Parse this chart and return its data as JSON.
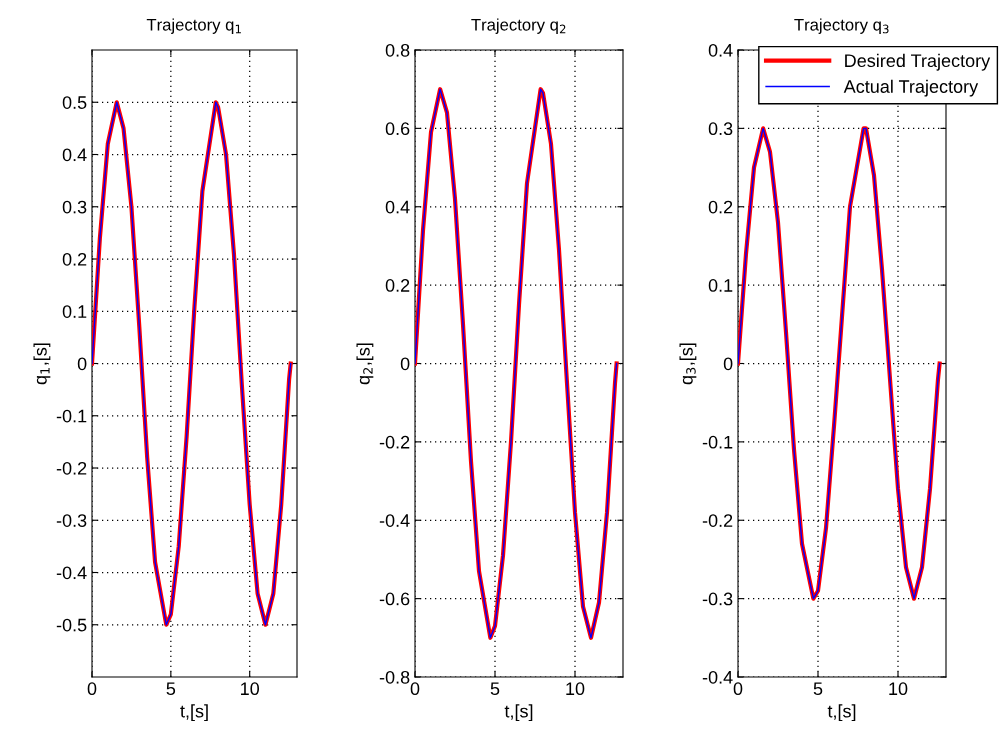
{
  "chart_data": [
    {
      "type": "line",
      "title": "Trajectory q$_{1}$",
      "xlabel": "t,[s]",
      "ylabel": "q$_{1}$,[s]",
      "x": [
        0,
        0.5,
        1,
        1.57,
        2,
        2.5,
        3,
        3.5,
        4,
        4.71,
        5,
        5.5,
        6,
        6.5,
        7,
        7.85,
        8,
        8.5,
        9,
        9.5,
        10,
        10.5,
        11,
        11.5,
        12,
        12.5,
        12.6
      ],
      "xlim": [
        0,
        13
      ],
      "xticks": [
        0,
        5,
        10
      ],
      "ylim": [
        -0.6,
        0.6
      ],
      "yticks": [
        -0.5,
        -0.4,
        -0.3,
        -0.2,
        -0.1,
        0,
        0.1,
        0.2,
        0.3,
        0.4,
        0.5
      ],
      "grid": true,
      "series": [
        {
          "color": "#ff0000",
          "values": [
            0,
            0.24,
            0.42,
            0.5,
            0.45,
            0.3,
            0.07,
            -0.18,
            -0.38,
            -0.5,
            -0.48,
            -0.35,
            -0.14,
            0.11,
            0.33,
            0.5,
            0.49,
            0.4,
            0.21,
            -0.04,
            -0.27,
            -0.44,
            -0.5,
            -0.44,
            -0.27,
            -0.03,
            0
          ]
        },
        {
          "color": "#0000ff",
          "values": [
            0,
            0.24,
            0.42,
            0.5,
            0.45,
            0.3,
            0.07,
            -0.18,
            -0.38,
            -0.5,
            -0.48,
            -0.35,
            -0.14,
            0.11,
            0.33,
            0.5,
            0.49,
            0.4,
            0.21,
            -0.04,
            -0.27,
            -0.44,
            -0.5,
            -0.44,
            -0.27,
            -0.03,
            0
          ]
        }
      ]
    },
    {
      "type": "line",
      "title": "Trajectory q$_{2}$",
      "xlabel": "t,[s]",
      "ylabel": "q$_{2}$,[s]",
      "x": [
        0,
        0.5,
        1,
        1.57,
        2,
        2.5,
        3,
        3.5,
        4,
        4.71,
        5,
        5.5,
        6,
        6.5,
        7,
        7.85,
        8,
        8.5,
        9,
        9.5,
        10,
        10.5,
        11,
        11.5,
        12,
        12.5,
        12.6
      ],
      "xlim": [
        0,
        13
      ],
      "xticks": [
        0,
        5,
        10
      ],
      "ylim": [
        -0.8,
        0.8
      ],
      "yticks": [
        -0.8,
        -0.6,
        -0.4,
        -0.2,
        0,
        0.2,
        0.4,
        0.6,
        0.8
      ],
      "grid": true,
      "series": [
        {
          "color": "#ff0000",
          "values": [
            0,
            0.34,
            0.59,
            0.7,
            0.64,
            0.42,
            0.1,
            -0.25,
            -0.53,
            -0.7,
            -0.67,
            -0.49,
            -0.2,
            0.15,
            0.46,
            0.7,
            0.69,
            0.56,
            0.29,
            -0.05,
            -0.38,
            -0.62,
            -0.7,
            -0.61,
            -0.38,
            -0.05,
            0
          ]
        },
        {
          "color": "#0000ff",
          "values": [
            0,
            0.34,
            0.59,
            0.7,
            0.64,
            0.42,
            0.1,
            -0.25,
            -0.53,
            -0.7,
            -0.67,
            -0.49,
            -0.2,
            0.15,
            0.46,
            0.7,
            0.69,
            0.56,
            0.29,
            -0.05,
            -0.38,
            -0.62,
            -0.7,
            -0.61,
            -0.38,
            -0.05,
            0
          ]
        }
      ]
    },
    {
      "type": "line",
      "title": "Trajectory q$_{3}$",
      "xlabel": "t,[s]",
      "ylabel": "q$_{3}$,[s]",
      "x": [
        0,
        0.5,
        1,
        1.57,
        2,
        2.5,
        3,
        3.5,
        4,
        4.71,
        5,
        5.5,
        6,
        6.5,
        7,
        7.85,
        8,
        8.5,
        9,
        9.5,
        10,
        10.5,
        11,
        11.5,
        12,
        12.5,
        12.6
      ],
      "xlim": [
        0,
        13
      ],
      "xticks": [
        0,
        5,
        10
      ],
      "ylim": [
        -0.4,
        0.4
      ],
      "yticks": [
        -0.4,
        -0.3,
        -0.2,
        -0.1,
        0,
        0.1,
        0.2,
        0.3,
        0.4
      ],
      "grid": true,
      "legend": "top right",
      "series": [
        {
          "name": "Desired Trajectory",
          "color": "#ff0000",
          "values": [
            0,
            0.14,
            0.25,
            0.3,
            0.27,
            0.18,
            0.04,
            -0.11,
            -0.23,
            -0.3,
            -0.29,
            -0.21,
            -0.08,
            0.06,
            0.2,
            0.3,
            0.3,
            0.24,
            0.12,
            -0.02,
            -0.16,
            -0.26,
            -0.3,
            -0.26,
            -0.16,
            -0.02,
            0
          ]
        },
        {
          "name": "Actual Trajectory",
          "color": "#0000ff",
          "values": [
            0,
            0.14,
            0.25,
            0.3,
            0.27,
            0.18,
            0.04,
            -0.11,
            -0.23,
            -0.3,
            -0.29,
            -0.21,
            -0.08,
            0.06,
            0.2,
            0.3,
            0.3,
            0.24,
            0.12,
            -0.02,
            -0.16,
            -0.26,
            -0.3,
            -0.26,
            -0.16,
            -0.02,
            0
          ]
        }
      ]
    }
  ]
}
